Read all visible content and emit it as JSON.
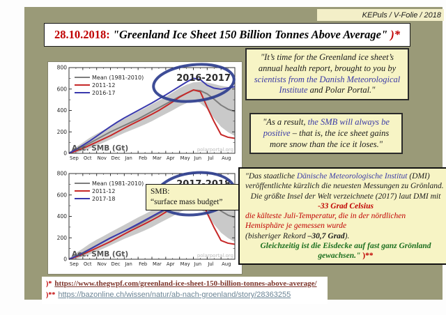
{
  "header": {
    "label": "KEPuls / V-Folie / 2018"
  },
  "title": {
    "segments": [
      {
        "text": "28.10.2018: ",
        "class": "red bold"
      },
      {
        "text": "\"Greenland Ice Sheet 150 Billion Tonnes Above Average\"",
        "class": "bold it"
      },
      {
        "text": "  )*",
        "class": "red bold it"
      }
    ]
  },
  "smb_note": {
    "line1": "SMB:",
    "line2": "“surface mass budget”"
  },
  "quote1": {
    "segments": [
      {
        "text": "\"It’s time for the Greenland ice sheet’s annual health report, brought to you by ",
        "class": "it"
      },
      {
        "text": "scientists from the Danish Meteorological Institute",
        "class": "it blue"
      },
      {
        "text": " and Polar Portal.\"",
        "class": "it"
      }
    ]
  },
  "quote2": {
    "segments": [
      {
        "text": "\"As a result, ",
        "class": "it"
      },
      {
        "text": "the SMB will always be positive",
        "class": "it blue"
      },
      {
        "text": " – that is, the ice sheet gains more snow than the ice it loses.\"",
        "class": "it"
      }
    ]
  },
  "german_box": {
    "paragraphs": [
      {
        "align": "left",
        "segments": [
          {
            "text": "\"Das staatliche ",
            "class": "it"
          },
          {
            "text": "Dänische Meteorologische Institut",
            "class": "it blue"
          },
          {
            "text": " (DMI) veröffentlichte kürzlich die neuesten Messungen zu Grönland.",
            "class": "it"
          }
        ]
      },
      {
        "align": "center",
        "segments": [
          {
            "text": "Die größte Insel der Welt verzeichnete (2017) laut DMI mit ",
            "class": "it"
          },
          {
            "text": "-33 Grad Celsius",
            "class": "it bold red"
          }
        ]
      },
      {
        "align": "left",
        "segments": [
          {
            "text": "die kälteste Juli-Temperatur, die in der nördlichen Hemisphäre je gemessen wurde",
            "class": "it red"
          }
        ]
      },
      {
        "align": "left",
        "segments": [
          {
            "text": "(bisheriger Rekord ",
            "class": "it"
          },
          {
            "text": "–30,7 Grad",
            "class": "it bold"
          },
          {
            "text": ").",
            "class": "it"
          }
        ]
      },
      {
        "align": "center",
        "segments": [
          {
            "text": "Gleichzeitig ist die Eisdecke auf fast ganz Grönland gewachsen.\" ",
            "class": "it bold green"
          },
          {
            "text": ")**",
            "class": "bold red"
          }
        ]
      }
    ]
  },
  "footnotes": [
    {
      "marker": ")*",
      "url": "https://www.thegwpf.com/greenland-ice-sheet-150-billion-tonnes-above-average/"
    },
    {
      "marker": ")**",
      "url": "https://bazonline.ch/wissen/natur/ab-nach-groenland/story/28363255"
    }
  ],
  "chart_data": [
    {
      "type": "line",
      "title": "2016-2017",
      "ylabel": "Acc. SMB (Gt)",
      "watermark": "polarportal.org",
      "months": [
        "Sep",
        "Oct",
        "Nov",
        "Dec",
        "Jan",
        "Feb",
        "Mar",
        "Apr",
        "May",
        "Jun",
        "Jul",
        "Aug"
      ],
      "ylim": [
        0,
        800
      ],
      "yticks": [
        0,
        200,
        400,
        600,
        800
      ],
      "grid": false,
      "legend_position": "top-left",
      "band": {
        "name": "1981-2010 range",
        "color": "#c9c9c9",
        "lower": [
          0,
          5,
          22,
          45,
          72,
          100,
          130,
          160,
          190,
          216,
          242,
          270,
          300,
          335,
          368,
          402,
          438,
          468,
          498,
          468,
          415,
          325,
          248,
          198,
          162
        ],
        "upper": [
          12,
          58,
          100,
          145,
          182,
          216,
          252,
          286,
          320,
          355,
          390,
          422,
          458,
          492,
          528,
          568,
          608,
          640,
          662,
          668,
          660,
          646,
          630,
          620,
          610
        ]
      },
      "series": [
        {
          "name": "Mean (1981-2010)",
          "color": "#7d7d7d",
          "values": [
            0,
            30,
            60,
            95,
            130,
            165,
            200,
            230,
            260,
            290,
            320,
            355,
            390,
            425,
            460,
            495,
            530,
            560,
            590,
            585,
            555,
            505,
            450,
            412,
            390
          ]
        },
        {
          "name": "2011-12",
          "color": "#c62828",
          "values": [
            0,
            22,
            45,
            75,
            105,
            135,
            165,
            200,
            235,
            268,
            300,
            332,
            365,
            400,
            440,
            480,
            525,
            560,
            592,
            575,
            430,
            295,
            175,
            150,
            140
          ]
        },
        {
          "name": "2016-17",
          "color": "#3939ad",
          "values": [
            0,
            35,
            75,
            115,
            160,
            205,
            250,
            292,
            330,
            365,
            400,
            435,
            470,
            508,
            545,
            585,
            625,
            665,
            700,
            688,
            635,
            608,
            598,
            610,
            622
          ]
        }
      ],
      "circle_color": "#2e3e8e"
    },
    {
      "type": "line",
      "title": "2017-2018",
      "ylabel": "Acc. SMB (Gt)",
      "watermark": "polarportal.org",
      "months": [
        "Sep",
        "Oct",
        "Nov",
        "Dec",
        "Jan",
        "Feb",
        "Mar",
        "Apr",
        "May",
        "Jun",
        "Jul",
        "Aug"
      ],
      "ylim": [
        0,
        800
      ],
      "yticks": [
        0,
        200,
        400,
        600,
        800
      ],
      "grid": false,
      "legend_position": "top-left",
      "band": {
        "name": "1981-2010 range",
        "color": "#c9c9c9",
        "lower": [
          0,
          5,
          22,
          45,
          72,
          100,
          130,
          160,
          190,
          216,
          242,
          270,
          300,
          335,
          368,
          402,
          438,
          468,
          498,
          468,
          415,
          325,
          248,
          198,
          162
        ],
        "upper": [
          12,
          58,
          100,
          145,
          182,
          216,
          252,
          286,
          320,
          355,
          390,
          422,
          458,
          492,
          528,
          568,
          608,
          640,
          662,
          668,
          660,
          646,
          630,
          620,
          610
        ]
      },
      "series": [
        {
          "name": "Mean (1981-2010)",
          "color": "#7d7d7d",
          "values": [
            0,
            30,
            60,
            95,
            130,
            165,
            200,
            230,
            260,
            290,
            320,
            355,
            390,
            425,
            460,
            495,
            530,
            560,
            590,
            585,
            555,
            505,
            450,
            412,
            390
          ]
        },
        {
          "name": "2011-12",
          "color": "#c62828",
          "values": [
            0,
            22,
            45,
            75,
            105,
            135,
            165,
            200,
            235,
            268,
            300,
            332,
            365,
            400,
            440,
            480,
            525,
            560,
            592,
            575,
            430,
            295,
            175,
            150,
            140
          ]
        },
        {
          "name": "2017-18",
          "color": "#3939ad",
          "values": [
            0,
            28,
            58,
            92,
            128,
            163,
            198,
            230,
            262,
            296,
            330,
            365,
            400,
            435,
            470,
            506,
            542,
            588,
            628,
            638,
            622,
            598,
            565,
            550,
            540
          ]
        }
      ],
      "circle_color": "#2e3e8e"
    }
  ]
}
